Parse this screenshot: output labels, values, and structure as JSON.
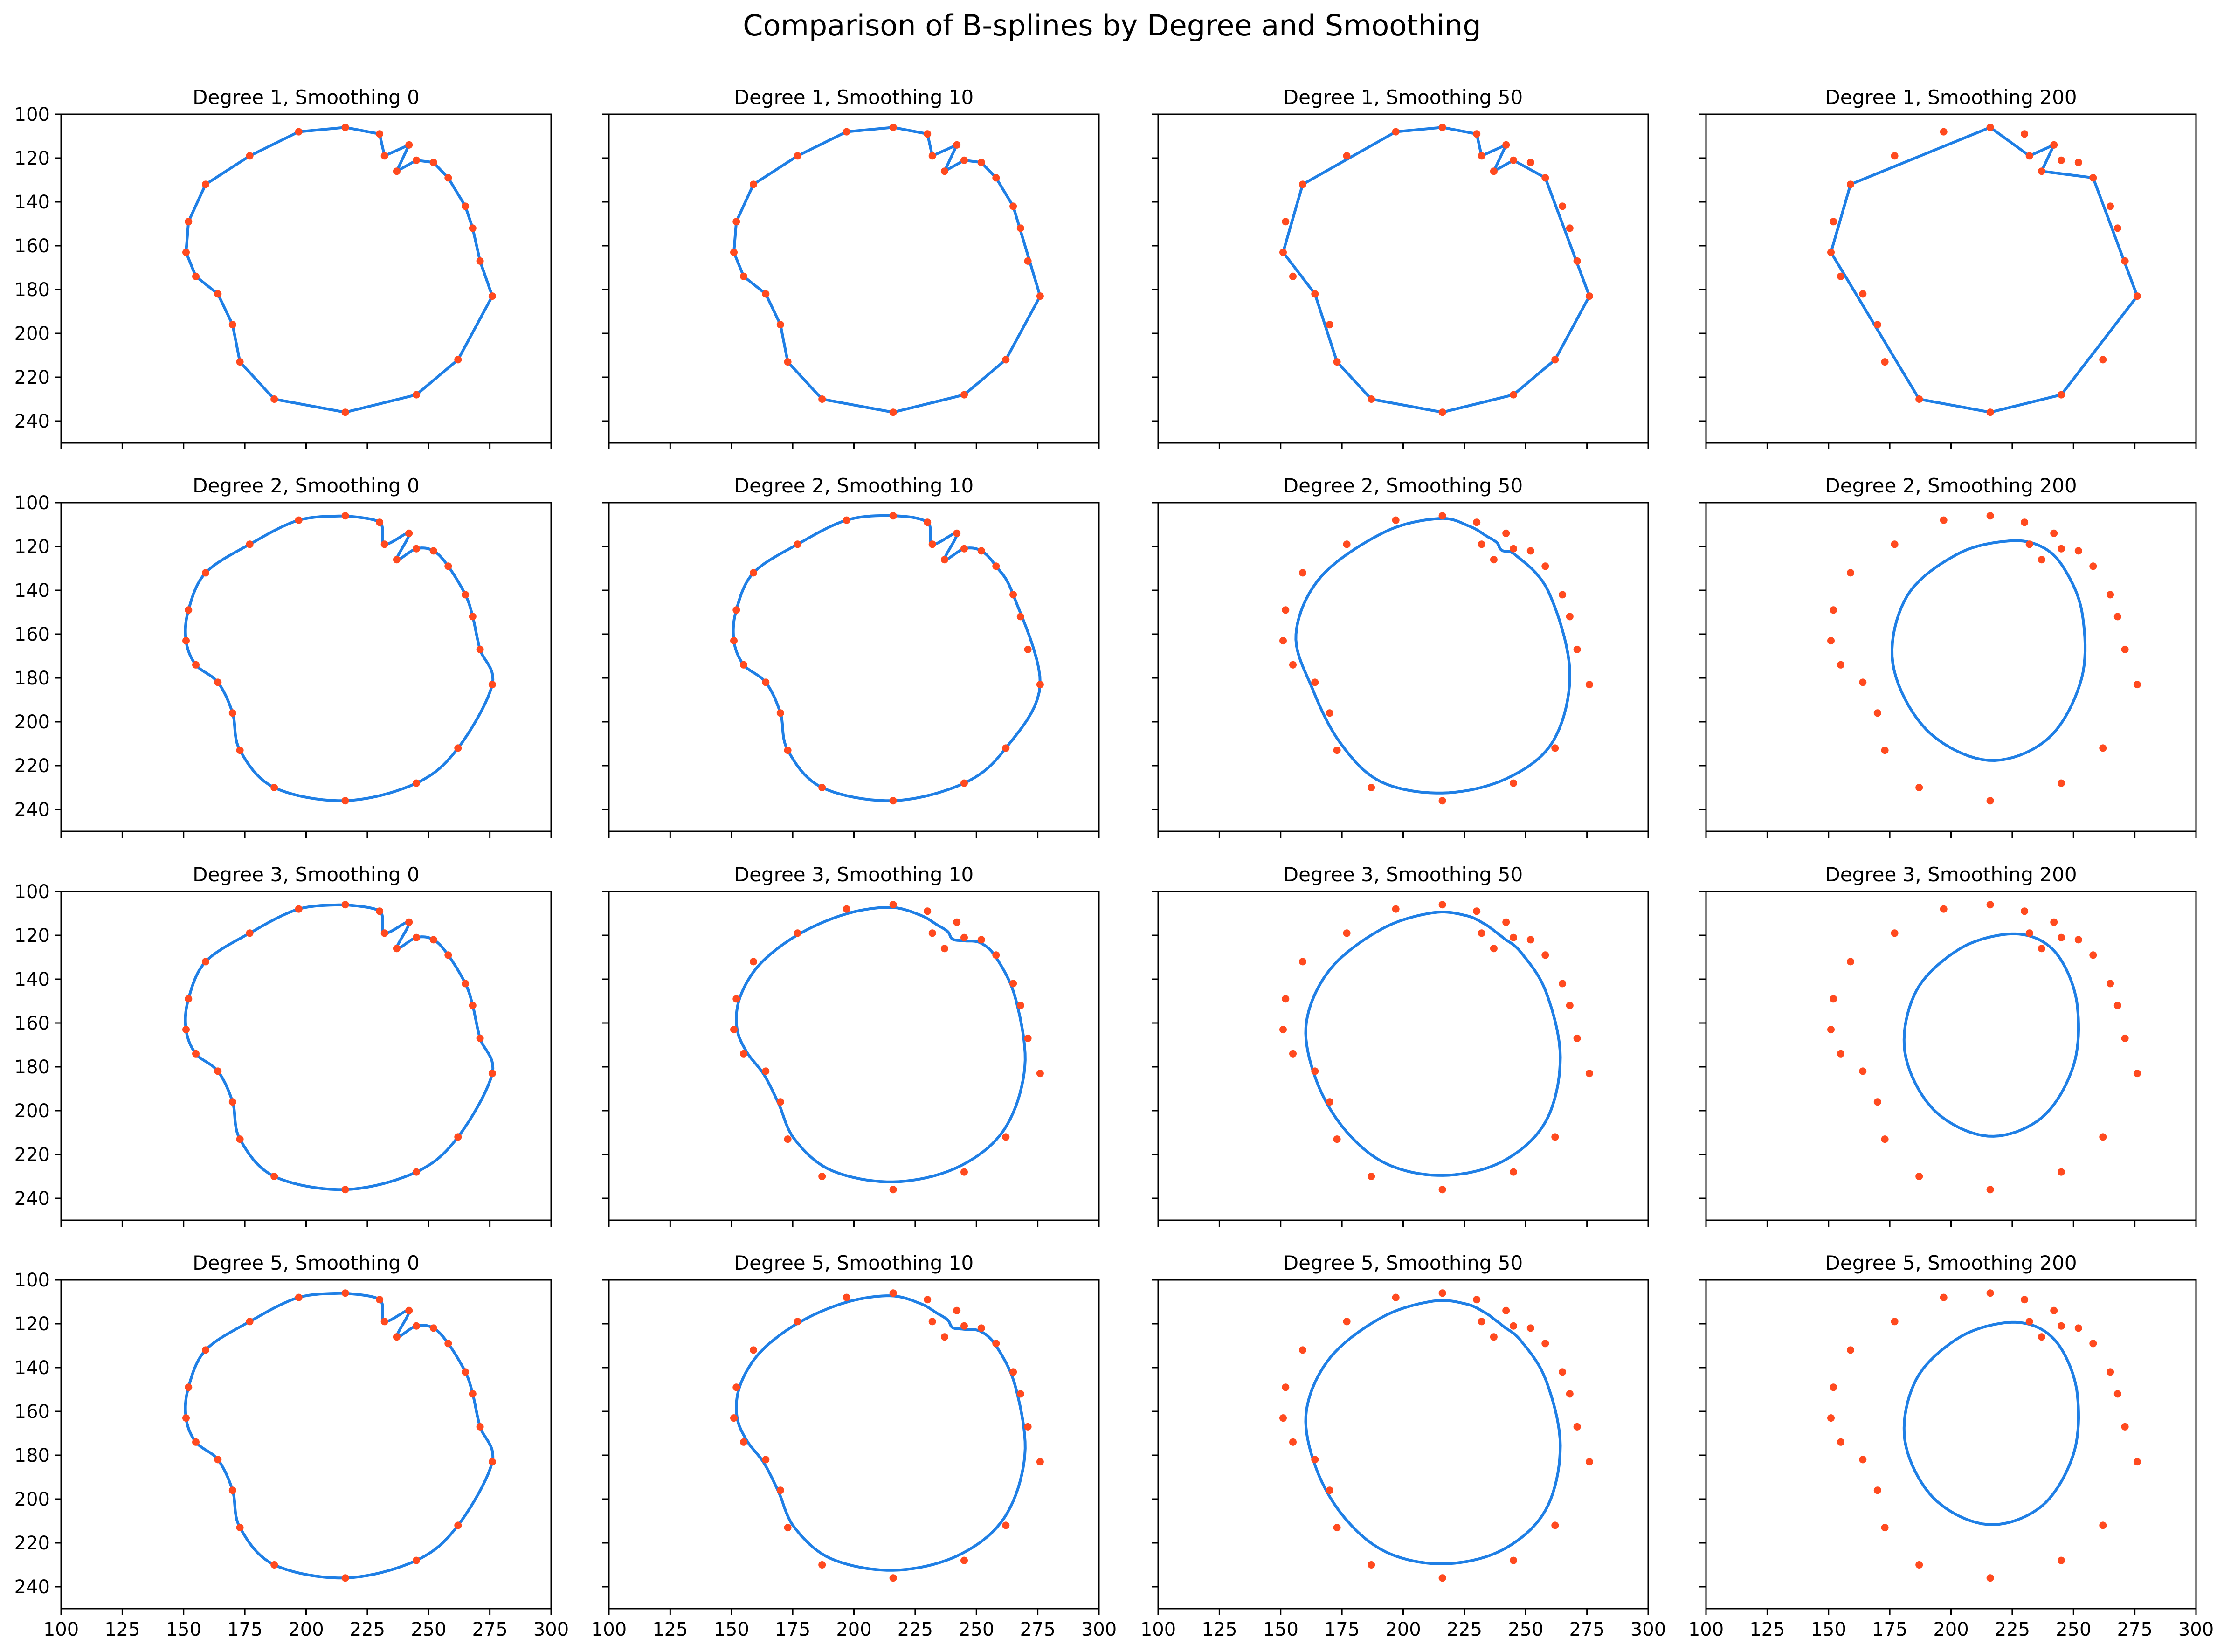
{
  "title": "Comparison of B-splines by Degree and Smoothing",
  "colors": {
    "curve": "#1f7fe5",
    "points": "#ff4a1f"
  },
  "chart_data": {
    "type": "line",
    "layout": "grid 4 rows x 4 columns, shared axes",
    "xlim": [
      100,
      300
    ],
    "ylim": [
      250,
      100
    ],
    "y_inverted": true,
    "x_ticks": [
      "100",
      "125",
      "150",
      "175",
      "200",
      "225",
      "250",
      "275",
      "300"
    ],
    "y_ticks": [
      "100",
      "120",
      "140",
      "160",
      "180",
      "200",
      "220",
      "240"
    ],
    "grid": false,
    "points": [
      [
        216,
        106
      ],
      [
        230,
        109
      ],
      [
        232,
        119
      ],
      [
        242,
        114
      ],
      [
        237,
        126
      ],
      [
        245,
        121
      ],
      [
        252,
        122
      ],
      [
        258,
        129
      ],
      [
        265,
        142
      ],
      [
        268,
        152
      ],
      [
        271,
        167
      ],
      [
        276,
        183
      ],
      [
        262,
        212
      ],
      [
        245,
        228
      ],
      [
        216,
        236
      ],
      [
        187,
        230
      ],
      [
        173,
        213
      ],
      [
        170,
        196
      ],
      [
        164,
        182
      ],
      [
        155,
        174
      ],
      [
        151,
        163
      ],
      [
        152,
        149
      ],
      [
        159,
        132
      ],
      [
        177,
        119
      ],
      [
        197,
        108
      ]
    ],
    "degrees": [
      1,
      2,
      3,
      5
    ],
    "smoothings": [
      0,
      10,
      50,
      200
    ],
    "panels": [
      {
        "title": "Degree 1, Smoothing 0"
      },
      {
        "title": "Degree 1, Smoothing 10"
      },
      {
        "title": "Degree 1, Smoothing 50"
      },
      {
        "title": "Degree 1, Smoothing 200"
      },
      {
        "title": "Degree 2, Smoothing 0"
      },
      {
        "title": "Degree 2, Smoothing 10"
      },
      {
        "title": "Degree 2, Smoothing 50"
      },
      {
        "title": "Degree 2, Smoothing 200"
      },
      {
        "title": "Degree 3, Smoothing 0"
      },
      {
        "title": "Degree 3, Smoothing 10"
      },
      {
        "title": "Degree 3, Smoothing 50"
      },
      {
        "title": "Degree 3, Smoothing 200"
      },
      {
        "title": "Degree 5, Smoothing 0"
      },
      {
        "title": "Degree 5, Smoothing 10"
      },
      {
        "title": "Degree 5, Smoothing 50"
      },
      {
        "title": "Degree 5, Smoothing 200"
      }
    ]
  }
}
